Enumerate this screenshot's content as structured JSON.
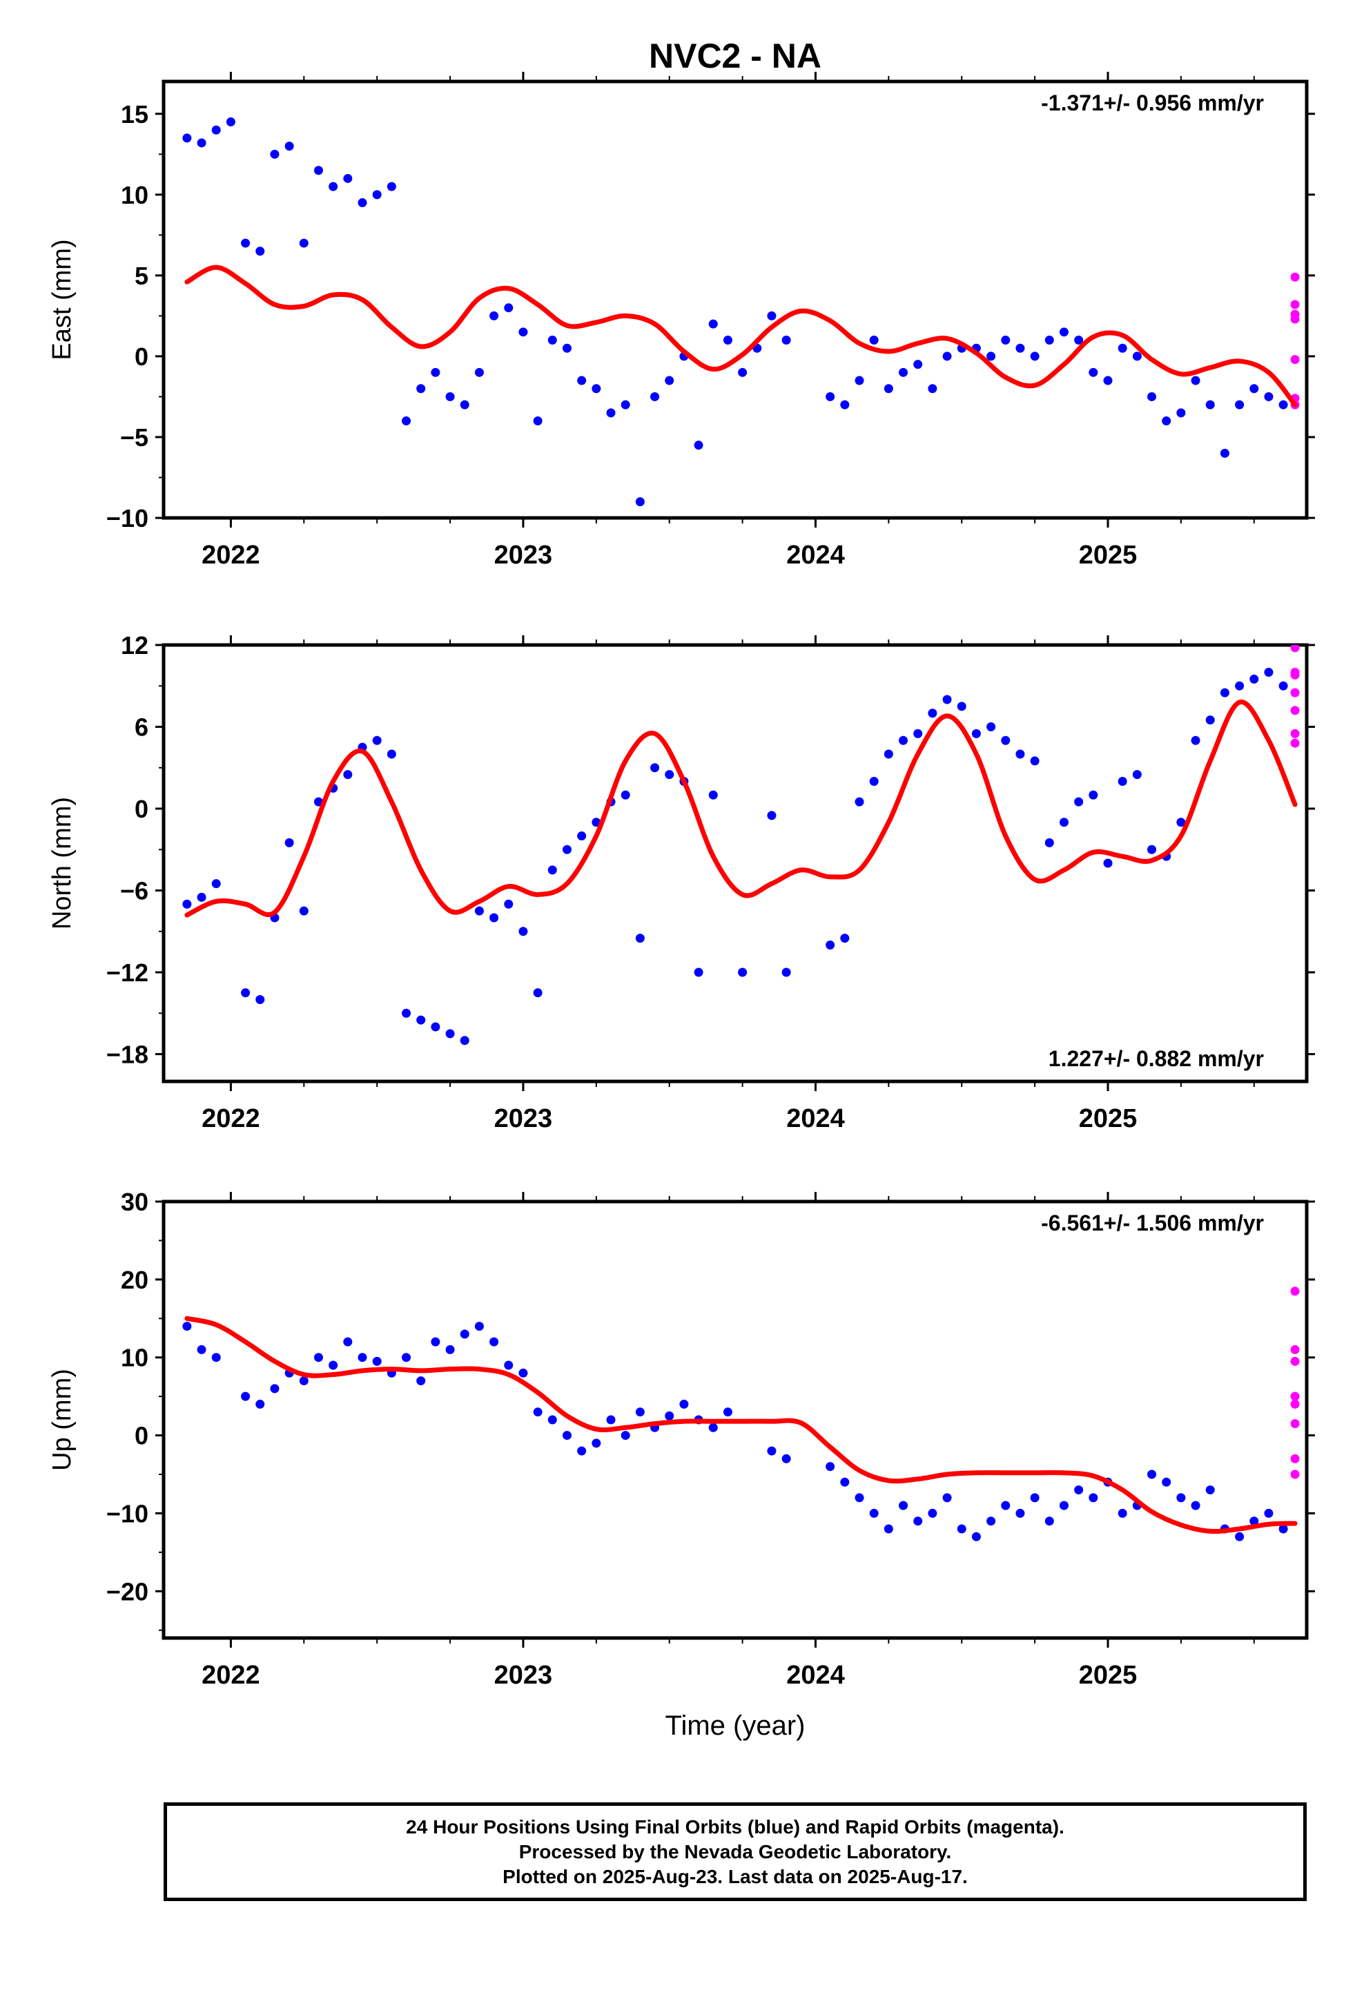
{
  "chart_data": [
    {
      "type": "scatter",
      "panel": "east",
      "title": "NVC2 - NA",
      "ylabel": "East (mm)",
      "xlabel": "",
      "ylim": [
        -10,
        17
      ],
      "xlim": [
        2021.77,
        2025.68
      ],
      "yticks": [
        -10,
        -5,
        0,
        5,
        10,
        15
      ],
      "xticks": [
        2022,
        2023,
        2024,
        2025
      ],
      "xtick_labels": [
        "2022",
        "2023",
        "2024",
        "2025"
      ],
      "grid": false,
      "rate_label": "-1.371+/- 0.956 mm/yr",
      "rate_label_position": "top-right",
      "series": [
        {
          "kind": "final-orbits",
          "color": "#0000ff",
          "x": [
            2021.85,
            2021.9,
            2021.95,
            2022.0,
            2022.05,
            2022.1,
            2022.15,
            2022.2,
            2022.25,
            2022.3,
            2022.35,
            2022.4,
            2022.45,
            2022.5,
            2022.55,
            2022.6,
            2022.65,
            2022.7,
            2022.75,
            2022.8,
            2022.85,
            2022.9,
            2022.95,
            2023.0,
            2023.05,
            2023.1,
            2023.15,
            2023.2,
            2023.25,
            2023.3,
            2023.35,
            2023.4,
            2023.45,
            2023.5,
            2023.55,
            2023.6,
            2023.65,
            2023.7,
            2023.75,
            2023.8,
            2023.85,
            2023.9,
            2024.05,
            2024.1,
            2024.15,
            2024.2,
            2024.25,
            2024.3,
            2024.35,
            2024.4,
            2024.45,
            2024.5,
            2024.55,
            2024.6,
            2024.65,
            2024.7,
            2024.75,
            2024.8,
            2024.85,
            2024.9,
            2024.95,
            2025.0,
            2025.05,
            2025.1,
            2025.15,
            2025.2,
            2025.25,
            2025.3,
            2025.35,
            2025.4,
            2025.45,
            2025.5,
            2025.55,
            2025.6
          ],
          "y": [
            13.5,
            13.2,
            14.0,
            14.5,
            7.0,
            6.5,
            12.5,
            13.0,
            7.0,
            11.5,
            10.5,
            11.0,
            9.5,
            10.0,
            10.5,
            -4.0,
            -2.0,
            -1.0,
            -2.5,
            -3.0,
            -1.0,
            2.5,
            3.0,
            1.5,
            -4.0,
            1.0,
            0.5,
            -1.5,
            -2.0,
            -3.5,
            -3.0,
            -9.0,
            -2.5,
            -1.5,
            0.0,
            -5.5,
            2.0,
            1.0,
            -1.0,
            0.5,
            2.5,
            1.0,
            -2.5,
            -3.0,
            -1.5,
            1.0,
            -2.0,
            -1.0,
            -0.5,
            -2.0,
            0.0,
            0.5,
            0.5,
            0.0,
            1.0,
            0.5,
            0.0,
            1.0,
            1.5,
            1.0,
            -1.0,
            -1.5,
            0.5,
            0.0,
            -2.5,
            -4.0,
            -3.5,
            -1.5,
            -3.0,
            -6.0,
            -3.0,
            -2.0,
            -2.5,
            -3.0
          ]
        },
        {
          "kind": "rapid-orbits",
          "color": "#ff00ff",
          "x": [
            2025.64,
            2025.64,
            2025.64,
            2025.64,
            2025.64,
            2025.64,
            2025.64
          ],
          "y": [
            4.9,
            3.2,
            2.6,
            2.3,
            -0.2,
            -2.6,
            -3.0
          ]
        },
        {
          "kind": "model",
          "color": "#ff0000",
          "x": [
            2021.85,
            2021.95,
            2022.05,
            2022.15,
            2022.25,
            2022.35,
            2022.45,
            2022.55,
            2022.65,
            2022.75,
            2022.85,
            2022.95,
            2023.05,
            2023.15,
            2023.25,
            2023.35,
            2023.45,
            2023.55,
            2023.65,
            2023.75,
            2023.85,
            2023.95,
            2024.05,
            2024.15,
            2024.25,
            2024.35,
            2024.45,
            2024.55,
            2024.65,
            2024.75,
            2024.85,
            2024.95,
            2025.05,
            2025.15,
            2025.25,
            2025.35,
            2025.45,
            2025.55,
            2025.64
          ],
          "y": [
            4.6,
            5.5,
            4.5,
            3.2,
            3.1,
            3.8,
            3.5,
            1.8,
            0.6,
            1.5,
            3.6,
            4.2,
            3.2,
            1.9,
            2.1,
            2.5,
            2.0,
            0.3,
            -0.8,
            0.1,
            1.8,
            2.8,
            2.2,
            0.8,
            0.3,
            0.8,
            1.1,
            0.2,
            -1.3,
            -1.8,
            -0.5,
            1.2,
            1.3,
            -0.2,
            -1.1,
            -0.7,
            -0.3,
            -1.0,
            -3.0
          ]
        }
      ]
    },
    {
      "type": "scatter",
      "panel": "north",
      "ylabel": "North (mm)",
      "xlabel": "",
      "ylim": [
        -20,
        12
      ],
      "xlim": [
        2021.77,
        2025.68
      ],
      "yticks": [
        -18,
        -12,
        -6,
        0,
        6,
        12
      ],
      "xticks": [
        2022,
        2023,
        2024,
        2025
      ],
      "xtick_labels": [
        "2022",
        "2023",
        "2024",
        "2025"
      ],
      "grid": false,
      "rate_label": "1.227+/- 0.882 mm/yr",
      "rate_label_position": "bottom-right",
      "series": [
        {
          "kind": "final-orbits",
          "color": "#0000ff",
          "x": [
            2021.85,
            2021.9,
            2021.95,
            2022.05,
            2022.1,
            2022.15,
            2022.2,
            2022.25,
            2022.3,
            2022.35,
            2022.4,
            2022.45,
            2022.5,
            2022.55,
            2022.6,
            2022.65,
            2022.7,
            2022.75,
            2022.8,
            2022.85,
            2022.9,
            2022.95,
            2023.0,
            2023.05,
            2023.1,
            2023.15,
            2023.2,
            2023.25,
            2023.3,
            2023.35,
            2023.4,
            2023.45,
            2023.5,
            2023.55,
            2023.6,
            2023.65,
            2023.75,
            2023.85,
            2023.9,
            2024.05,
            2024.1,
            2024.15,
            2024.2,
            2024.25,
            2024.3,
            2024.35,
            2024.4,
            2024.45,
            2024.5,
            2024.55,
            2024.6,
            2024.65,
            2024.7,
            2024.75,
            2024.8,
            2024.85,
            2024.9,
            2024.95,
            2025.0,
            2025.05,
            2025.1,
            2025.15,
            2025.2,
            2025.25,
            2025.3,
            2025.35,
            2025.4,
            2025.45,
            2025.5,
            2025.55,
            2025.6
          ],
          "y": [
            -7.0,
            -6.5,
            -5.5,
            -13.5,
            -14.0,
            -8.0,
            -2.5,
            -7.5,
            0.5,
            1.5,
            2.5,
            4.5,
            5.0,
            4.0,
            -15.0,
            -15.5,
            -16.0,
            -16.5,
            -17.0,
            -7.5,
            -8.0,
            -7.0,
            -9.0,
            -13.5,
            -4.5,
            -3.0,
            -2.0,
            -1.0,
            0.5,
            1.0,
            -9.5,
            3.0,
            2.5,
            2.0,
            -12.0,
            1.0,
            -12.0,
            -0.5,
            -12.0,
            -10.0,
            -9.5,
            0.5,
            2.0,
            4.0,
            5.0,
            5.5,
            7.0,
            8.0,
            7.5,
            5.5,
            6.0,
            5.0,
            4.0,
            3.5,
            -2.5,
            -1.0,
            0.5,
            1.0,
            -4.0,
            2.0,
            2.5,
            -3.0,
            -3.5,
            -1.0,
            5.0,
            6.5,
            8.5,
            9.0,
            9.5,
            10.0,
            9.0
          ]
        },
        {
          "kind": "rapid-orbits",
          "color": "#ff00ff",
          "x": [
            2025.64,
            2025.64,
            2025.64,
            2025.64,
            2025.64,
            2025.64,
            2025.64
          ],
          "y": [
            11.8,
            10.0,
            9.8,
            8.5,
            7.2,
            5.5,
            4.8
          ]
        },
        {
          "kind": "model",
          "color": "#ff0000",
          "x": [
            2021.85,
            2021.95,
            2022.05,
            2022.15,
            2022.25,
            2022.35,
            2022.45,
            2022.55,
            2022.65,
            2022.75,
            2022.85,
            2022.95,
            2023.05,
            2023.15,
            2023.25,
            2023.35,
            2023.45,
            2023.55,
            2023.65,
            2023.75,
            2023.85,
            2023.95,
            2024.05,
            2024.15,
            2024.25,
            2024.35,
            2024.45,
            2024.55,
            2024.65,
            2024.75,
            2024.85,
            2024.95,
            2025.05,
            2025.15,
            2025.25,
            2025.35,
            2025.45,
            2025.55,
            2025.64
          ],
          "y": [
            -7.8,
            -6.8,
            -7.0,
            -7.6,
            -3.5,
            2.0,
            4.2,
            0.5,
            -4.5,
            -7.5,
            -6.8,
            -5.7,
            -6.3,
            -5.5,
            -2.0,
            3.5,
            5.5,
            2.0,
            -3.5,
            -6.3,
            -5.5,
            -4.5,
            -5.0,
            -4.5,
            -1.0,
            4.0,
            6.8,
            4.0,
            -2.0,
            -5.2,
            -4.5,
            -3.2,
            -3.5,
            -3.8,
            -2.0,
            3.5,
            7.8,
            5.0,
            0.3
          ]
        }
      ]
    },
    {
      "type": "scatter",
      "panel": "up",
      "ylabel": "Up (mm)",
      "xlabel": "Time (year)",
      "ylim": [
        -26,
        30
      ],
      "xlim": [
        2021.77,
        2025.68
      ],
      "yticks": [
        -20,
        -10,
        0,
        10,
        20,
        30
      ],
      "xticks": [
        2022,
        2023,
        2024,
        2025
      ],
      "xtick_labels": [
        "2022",
        "2023",
        "2024",
        "2025"
      ],
      "grid": false,
      "rate_label": "-6.561+/- 1.506 mm/yr",
      "rate_label_position": "top-right",
      "series": [
        {
          "kind": "final-orbits",
          "color": "#0000ff",
          "x": [
            2021.85,
            2021.9,
            2021.95,
            2022.05,
            2022.1,
            2022.15,
            2022.2,
            2022.25,
            2022.3,
            2022.35,
            2022.4,
            2022.45,
            2022.5,
            2022.55,
            2022.6,
            2022.65,
            2022.7,
            2022.75,
            2022.8,
            2022.85,
            2022.9,
            2022.95,
            2023.0,
            2023.05,
            2023.1,
            2023.15,
            2023.2,
            2023.25,
            2023.3,
            2023.35,
            2023.4,
            2023.45,
            2023.5,
            2023.55,
            2023.6,
            2023.65,
            2023.7,
            2023.85,
            2023.9,
            2024.05,
            2024.1,
            2024.15,
            2024.2,
            2024.25,
            2024.3,
            2024.35,
            2024.4,
            2024.45,
            2024.5,
            2024.55,
            2024.6,
            2024.65,
            2024.7,
            2024.75,
            2024.8,
            2024.85,
            2024.9,
            2024.95,
            2025.0,
            2025.05,
            2025.1,
            2025.15,
            2025.2,
            2025.25,
            2025.3,
            2025.35,
            2025.4,
            2025.45,
            2025.5,
            2025.55,
            2025.6
          ],
          "y": [
            14.0,
            11.0,
            10.0,
            5.0,
            4.0,
            6.0,
            8.0,
            7.0,
            10.0,
            9.0,
            12.0,
            10.0,
            9.5,
            8.0,
            10.0,
            7.0,
            12.0,
            11.0,
            13.0,
            14.0,
            12.0,
            9.0,
            8.0,
            3.0,
            2.0,
            0.0,
            -2.0,
            -1.0,
            2.0,
            0.0,
            3.0,
            1.0,
            2.5,
            4.0,
            2.0,
            1.0,
            3.0,
            -2.0,
            -3.0,
            -4.0,
            -6.0,
            -8.0,
            -10.0,
            -12.0,
            -9.0,
            -11.0,
            -10.0,
            -8.0,
            -12.0,
            -13.0,
            -11.0,
            -9.0,
            -10.0,
            -8.0,
            -11.0,
            -9.0,
            -7.0,
            -8.0,
            -6.0,
            -10.0,
            -9.0,
            -5.0,
            -6.0,
            -8.0,
            -9.0,
            -7.0,
            -12.0,
            -13.0,
            -11.0,
            -10.0,
            -12.0
          ]
        },
        {
          "kind": "rapid-orbits",
          "color": "#ff00ff",
          "x": [
            2025.64,
            2025.64,
            2025.64,
            2025.64,
            2025.64,
            2025.64,
            2025.64,
            2025.64
          ],
          "y": [
            18.5,
            11.0,
            9.5,
            5.0,
            4.0,
            1.5,
            -3.0,
            -5.0
          ]
        },
        {
          "kind": "model",
          "color": "#ff0000",
          "x": [
            2021.85,
            2021.95,
            2022.05,
            2022.15,
            2022.25,
            2022.35,
            2022.45,
            2022.55,
            2022.65,
            2022.75,
            2022.85,
            2022.95,
            2023.05,
            2023.15,
            2023.25,
            2023.35,
            2023.45,
            2023.55,
            2023.65,
            2023.75,
            2023.85,
            2023.95,
            2024.05,
            2024.15,
            2024.25,
            2024.35,
            2024.45,
            2024.55,
            2024.65,
            2024.75,
            2024.85,
            2024.95,
            2025.05,
            2025.15,
            2025.25,
            2025.35,
            2025.45,
            2025.55,
            2025.64
          ],
          "y": [
            15.0,
            14.2,
            12.0,
            9.5,
            7.8,
            7.8,
            8.3,
            8.5,
            8.3,
            8.5,
            8.5,
            7.8,
            5.5,
            2.5,
            0.8,
            1.0,
            1.5,
            1.8,
            1.8,
            1.8,
            1.8,
            1.6,
            -1.5,
            -4.5,
            -5.8,
            -5.6,
            -5.0,
            -4.8,
            -4.8,
            -4.8,
            -4.8,
            -5.2,
            -7.0,
            -9.8,
            -11.5,
            -12.3,
            -12.0,
            -11.4,
            -11.3
          ]
        }
      ]
    }
  ],
  "footer": {
    "line1": "24 Hour Positions Using Final Orbits (blue) and Rapid Orbits (magenta).",
    "line2": "Processed by the Nevada Geodetic Laboratory.",
    "line3": "Plotted on 2025-Aug-23. Last data on 2025-Aug-17."
  }
}
